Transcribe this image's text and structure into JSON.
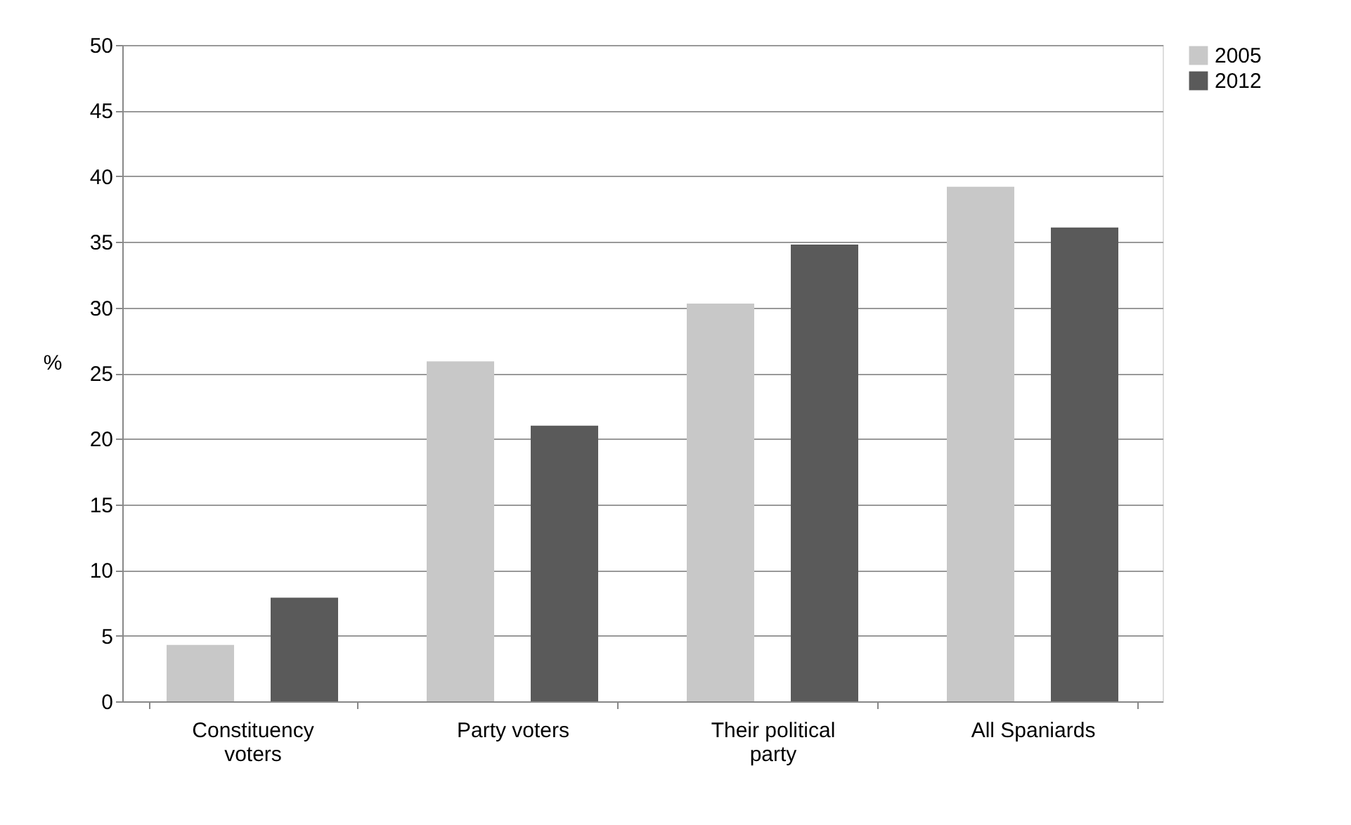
{
  "chart_data": {
    "type": "bar",
    "ylabel": "%",
    "categories": [
      "Constituency voters",
      "Party voters",
      "Their political party",
      "All Spaniards"
    ],
    "series": [
      {
        "name": "2005",
        "color": "#c8c8c8",
        "values": [
          4.3,
          25.9,
          30.3,
          39.2
        ]
      },
      {
        "name": "2012",
        "color": "#5a5a5a",
        "values": [
          7.9,
          21.0,
          34.8,
          36.1
        ]
      }
    ],
    "ylim": [
      0,
      50
    ],
    "yticks": [
      0,
      5,
      10,
      15,
      20,
      25,
      30,
      35,
      40,
      45,
      50
    ],
    "grid": "y",
    "legend": "right"
  }
}
